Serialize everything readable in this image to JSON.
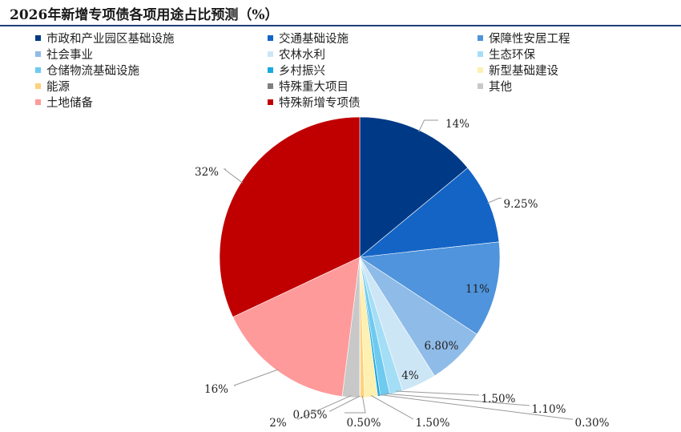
{
  "chart_data": {
    "type": "pie",
    "title": "2026年新增专项债各项用途占比预测（%）",
    "legend_position": "top",
    "slices": [
      {
        "name": "市政和产业园区基础设施",
        "value": 14,
        "label": "14%",
        "color": "#003a86"
      },
      {
        "name": "交通基础设施",
        "value": 9.25,
        "label": "9.25%",
        "color": "#1464c6"
      },
      {
        "name": "保障性安居工程",
        "value": 11,
        "label": "11%",
        "color": "#4f94dc"
      },
      {
        "name": "社会事业",
        "value": 6.8,
        "label": "6.80%",
        "color": "#8fbbe8"
      },
      {
        "name": "农林水利",
        "value": 4,
        "label": "4%",
        "color": "#cde6f6"
      },
      {
        "name": "生态环保",
        "value": 1.5,
        "label": "1.50%",
        "color": "#a4def6"
      },
      {
        "name": "仓储物流基础设施",
        "value": 1.1,
        "label": "1.10%",
        "color": "#6fcaf0"
      },
      {
        "name": "乡村振兴",
        "value": 0.3,
        "label": "0.30%",
        "color": "#1aa9e0"
      },
      {
        "name": "新型基础建设",
        "value": 1.5,
        "label": "1.50%",
        "color": "#fdf0b0"
      },
      {
        "name": "能源",
        "value": 0.5,
        "label": "0.50%",
        "color": "#fdd27c"
      },
      {
        "name": "特殊重大项目",
        "value": 0.05,
        "label": "0.05%",
        "color": "#808080"
      },
      {
        "name": "其他",
        "value": 2,
        "label": "2%",
        "color": "#c8c8c8"
      },
      {
        "name": "土地储备",
        "value": 16,
        "label": "16%",
        "color": "#ff9a9a"
      },
      {
        "name": "特殊新增专项债",
        "value": 32,
        "label": "32%",
        "color": "#c00000"
      }
    ]
  }
}
